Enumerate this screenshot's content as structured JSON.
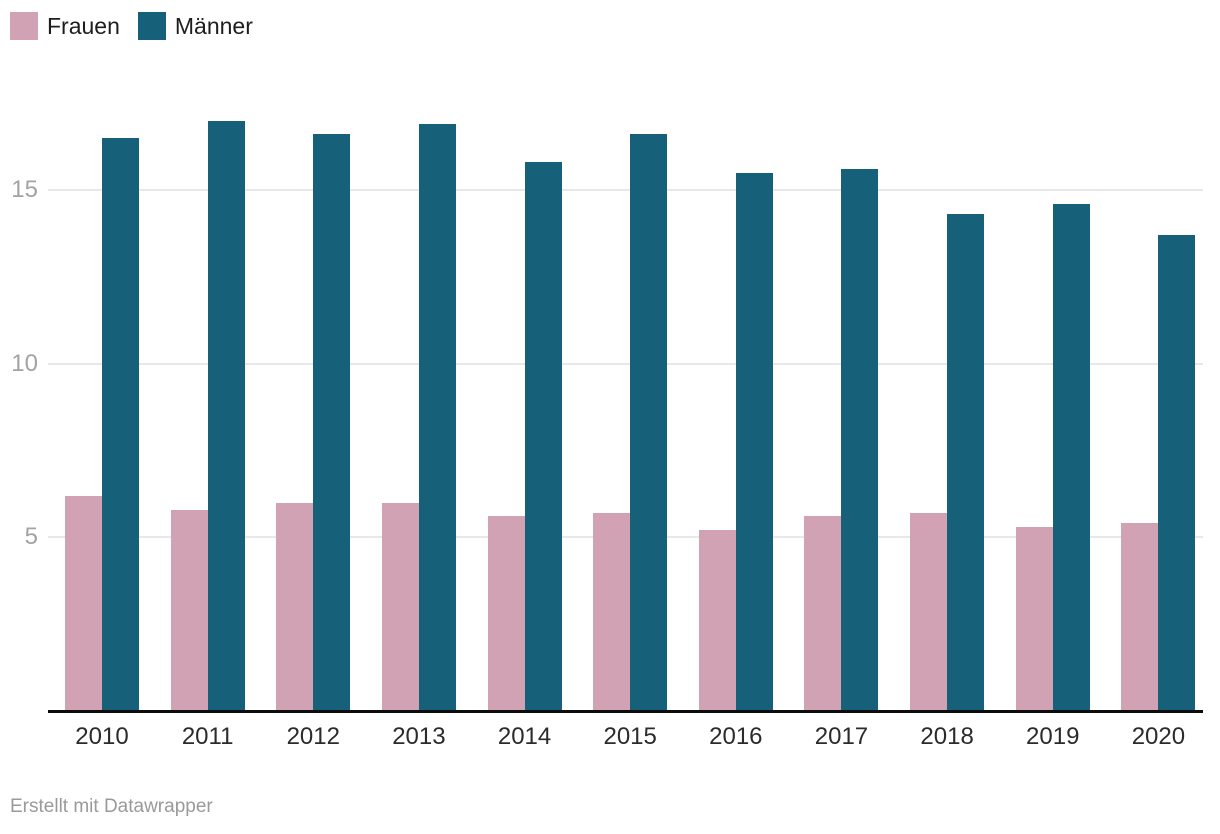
{
  "footer": {
    "text": "Erstellt mit Datawrapper"
  },
  "chart_data": {
    "type": "bar",
    "title": "",
    "xlabel": "",
    "ylabel": "",
    "categories": [
      "2010",
      "2011",
      "2012",
      "2013",
      "2014",
      "2015",
      "2016",
      "2017",
      "2018",
      "2019",
      "2020"
    ],
    "series": [
      {
        "name": "Frauen",
        "color": "#d0a2b3",
        "values": [
          6.2,
          5.8,
          6.0,
          6.0,
          5.6,
          5.7,
          5.2,
          5.6,
          5.7,
          5.3,
          5.4
        ]
      },
      {
        "name": "Männer",
        "color": "#17607a",
        "values": [
          16.5,
          17.0,
          16.6,
          16.9,
          15.8,
          16.6,
          15.5,
          15.6,
          14.3,
          14.6,
          13.7
        ]
      }
    ],
    "ylim": [
      0,
      17.6
    ],
    "yticks": [
      5,
      10,
      15
    ],
    "grid": true,
    "grid_color": "#e8e8e8",
    "axis_line_color": "#0c0c0c",
    "tick_label_color": "#a3a3a3",
    "x_label_color": "#2b2b2b",
    "legend_position": "top-left"
  }
}
